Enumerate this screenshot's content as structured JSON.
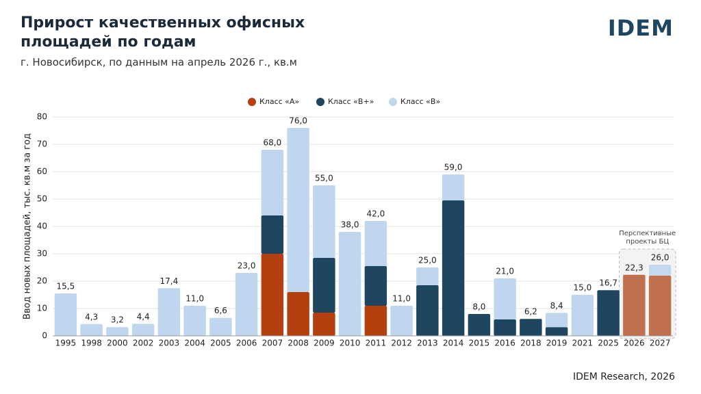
{
  "chart_data": {
    "type": "stacked_bar",
    "title": "Прирост качественных офисных площадей по годам",
    "subtitle": "г. Новосибирск, по данным на апрель 2026 г., кв.м",
    "brand": "IDEM",
    "source": "IDEM Research, 2026",
    "y_label": "Ввод новых площадей, тыс. кв.м за год",
    "categories": [
      "1995",
      "1998",
      "2000",
      "2002",
      "2003",
      "2004",
      "2005",
      "2006",
      "2007",
      "2008",
      "2009",
      "2010",
      "2011",
      "2012",
      "2013",
      "2014",
      "2015",
      "2016",
      "2018",
      "2019",
      "2021",
      "2025",
      "2026",
      "2027"
    ],
    "series": [
      {
        "name": "Класс «А»",
        "color": "#b5400f",
        "forecast_color": "#c0704e",
        "values": [
          0,
          0,
          0,
          0,
          0,
          0,
          0,
          0,
          30,
          16,
          8.5,
          0,
          11,
          0,
          0,
          0,
          0,
          0,
          0,
          0,
          0,
          0,
          22.3,
          22
        ]
      },
      {
        "name": "Класс «В+»",
        "color": "#1f4661",
        "forecast_color": "#1f4661",
        "values": [
          0,
          0,
          0,
          0,
          0,
          0,
          0,
          0,
          14,
          0,
          20,
          0,
          14.5,
          0,
          18.5,
          49.5,
          8,
          6,
          6.2,
          3.2,
          0,
          16.7,
          0,
          0
        ]
      },
      {
        "name": "Класс «В»",
        "color": "#c0d5ee",
        "forecast_color": "#c6d8ee",
        "values": [
          15.5,
          4.3,
          3.2,
          4.4,
          17.4,
          11,
          6.6,
          23,
          24,
          60,
          26.5,
          38,
          16.5,
          11,
          6.5,
          9.5,
          0,
          15,
          0,
          5.2,
          15,
          0,
          0,
          4
        ]
      }
    ],
    "totals": [
      15.5,
      4.3,
      3.2,
      4.4,
      17.4,
      11,
      6.6,
      23,
      68,
      76,
      55,
      38,
      42,
      11,
      25,
      59,
      8,
      21,
      6.2,
      8.4,
      15,
      16.7,
      22.3,
      26
    ],
    "total_labels": [
      "15,5",
      "4,3",
      "3,2",
      "4,4",
      "17,4",
      "11,0",
      "6,6",
      "23,0",
      "68,0",
      "76,0",
      "55,0",
      "38,0",
      "42,0",
      "11,0",
      "25,0",
      "59,0",
      "8,0",
      "21,0",
      "6,2",
      "8,4",
      "15,0",
      "16,7",
      "22,3",
      "26,0"
    ],
    "forecast_start": "2026",
    "forecast_label": "Перспективные проекты БЦ",
    "ylim": [
      0,
      80
    ],
    "yticks": [
      0,
      10,
      20,
      30,
      40,
      50,
      60,
      70,
      80
    ],
    "grid": true,
    "legend": "top"
  }
}
